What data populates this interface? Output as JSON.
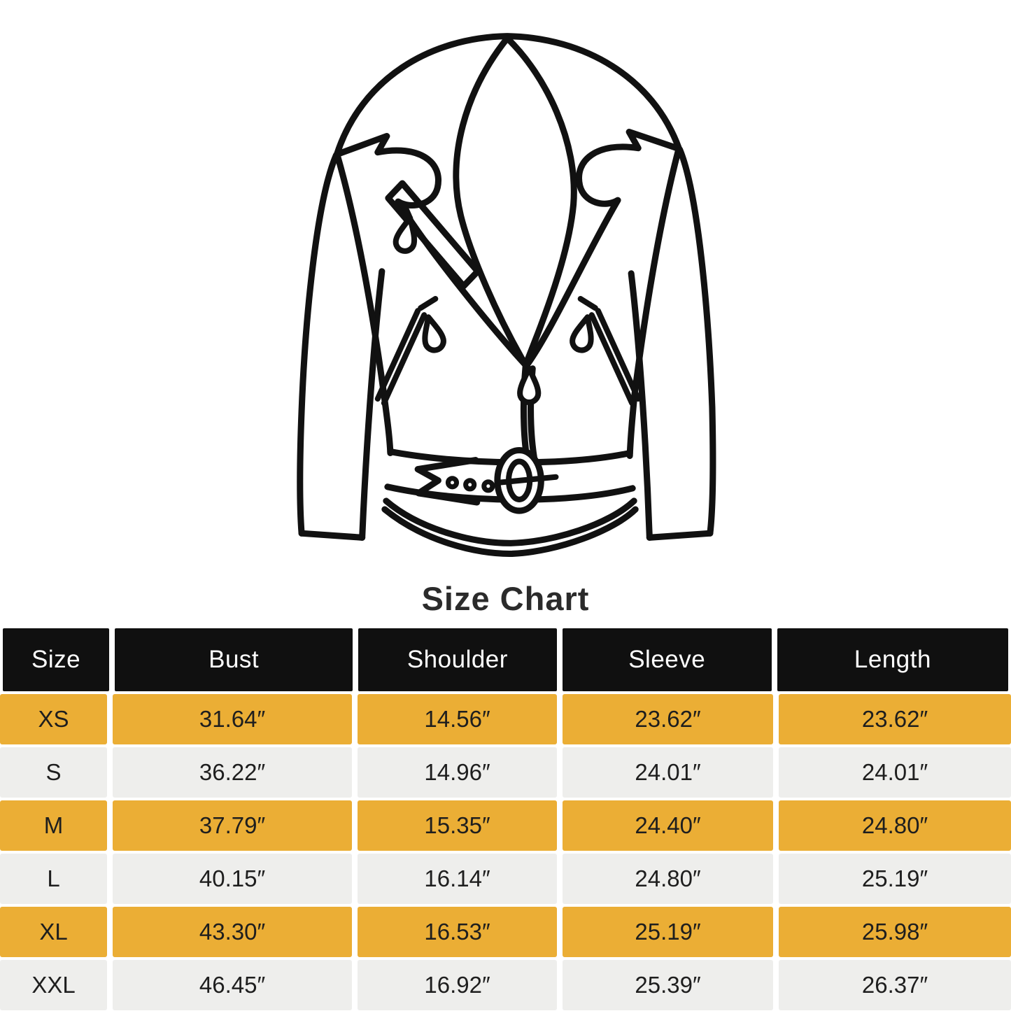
{
  "title": "Size Chart",
  "illustration": {
    "name": "biker-jacket-line-art",
    "line_color": "#111111",
    "background": "#ffffff"
  },
  "table": {
    "columns": [
      "Size",
      "Bust",
      "Shoulder",
      "Sleeve",
      "Length"
    ],
    "keys": [
      "size",
      "bust",
      "shoulder",
      "sleeve",
      "length"
    ],
    "rows": [
      {
        "size": "XS",
        "bust": "31.64″",
        "shoulder": "14.56″",
        "sleeve": "23.62″",
        "length": "23.62″"
      },
      {
        "size": "S",
        "bust": "36.22″",
        "shoulder": "14.96″",
        "sleeve": "24.01″",
        "length": "24.01″"
      },
      {
        "size": "M",
        "bust": "37.79″",
        "shoulder": "15.35″",
        "sleeve": "24.40″",
        "length": "24.80″"
      },
      {
        "size": "L",
        "bust": "40.15″",
        "shoulder": "16.14″",
        "sleeve": "24.80″",
        "length": "25.19″"
      },
      {
        "size": "XL",
        "bust": "43.30″",
        "shoulder": "16.53″",
        "sleeve": "25.19″",
        "length": "25.98″"
      },
      {
        "size": "XXL",
        "bust": "46.45″",
        "shoulder": "16.92″",
        "sleeve": "25.39″",
        "length": "26.37″"
      }
    ],
    "colors": {
      "header_bg": "#101010",
      "header_text": "#ffffff",
      "row_yellow": "#EBAE35",
      "row_gray": "#EEEEEC",
      "cell_text": "#1e1e1e"
    }
  },
  "chart_data": {
    "type": "table",
    "title": "Size Chart",
    "columns": [
      "Size",
      "Bust",
      "Shoulder",
      "Sleeve",
      "Length"
    ],
    "rows": [
      [
        "XS",
        "31.64″",
        "14.56″",
        "23.62″",
        "23.62″"
      ],
      [
        "S",
        "36.22″",
        "14.96″",
        "24.01″",
        "24.01″"
      ],
      [
        "M",
        "37.79″",
        "15.35″",
        "24.40″",
        "24.80″"
      ],
      [
        "L",
        "40.15″",
        "16.14″",
        "24.80″",
        "25.19″"
      ],
      [
        "XL",
        "43.30″",
        "16.53″",
        "25.19″",
        "25.98″"
      ],
      [
        "XXL",
        "46.45″",
        "16.92″",
        "25.39″",
        "26.37″"
      ]
    ],
    "layout": {
      "row_stripes": [
        "yellow",
        "gray"
      ],
      "header": "black"
    }
  }
}
